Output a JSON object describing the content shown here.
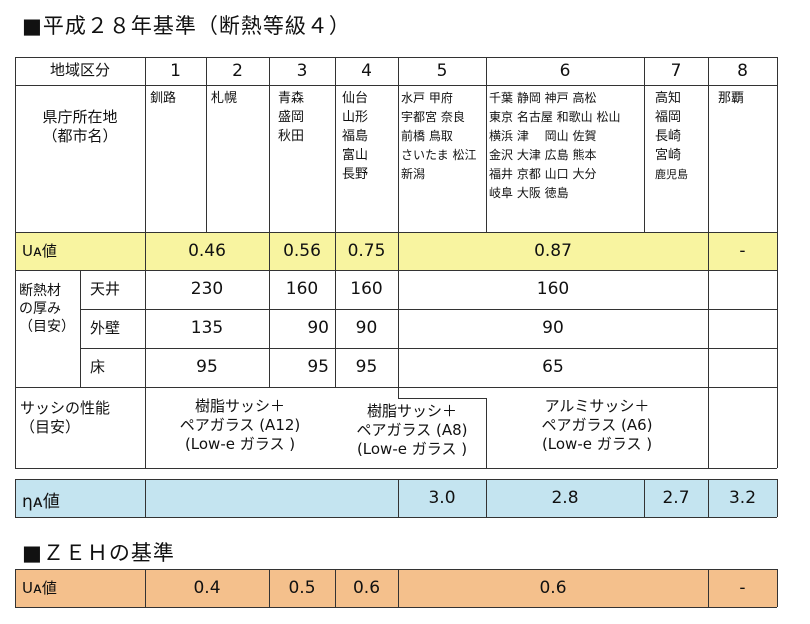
{
  "title": "■平成２８年基準（断熱等級４）",
  "zeh_title": "■ＺＥＨの基準",
  "colors": {
    "ua_row": "#f8f4a0",
    "eta_row": "#c4e4f0",
    "zeh_row": "#f4c08c",
    "border": "#333333"
  },
  "table": {
    "region_label": "地域区分",
    "regions": [
      "1",
      "2",
      "3",
      "4",
      "5",
      "6",
      "7",
      "8"
    ],
    "capital_label": [
      "県庁所在地",
      "（都市名）"
    ],
    "capitals": {
      "r1": [
        "釧路"
      ],
      "r2": [
        "札幌"
      ],
      "r3": [
        "青森",
        "盛岡",
        "秋田"
      ],
      "r4": [
        "仙台",
        "山形",
        "福島",
        "富山",
        "長野"
      ],
      "r5": [
        "水戸 甲府",
        "宇都宮 奈良",
        "前橋 鳥取",
        "さいたま 松江",
        "新潟"
      ],
      "r6": [
        "千葉 静岡 神戸 高松",
        "東京 名古屋 和歌山 松山",
        "横浜 津　 岡山 佐賀",
        "金沢 大津 広島 熊本",
        "福井 京都 山口 大分",
        "岐阜 大阪 徳島"
      ],
      "r7": [
        "高知",
        "福岡",
        "長崎",
        "宮崎",
        "鹿児島"
      ],
      "r8": [
        "那覇"
      ]
    },
    "ua_label": "Uᴀ値",
    "ua": {
      "r12": "0.46",
      "r3": "0.56",
      "r4": "0.75",
      "r567": "0.87",
      "r8": "-"
    },
    "insul_label": [
      "断熱材",
      "の厚み",
      "（目安）"
    ],
    "ceiling": {
      "label": "天井",
      "r12": "230",
      "r3": "160",
      "r4": "160",
      "r567": "160"
    },
    "wall": {
      "label": "外壁",
      "r12": "135",
      "r3": "90",
      "r4": "90",
      "r567": "90"
    },
    "floor": {
      "label": "床",
      "r12": "95",
      "r3": "95",
      "r4": "95",
      "r567": "65"
    },
    "sash_label": [
      "サッシの性能",
      "（目安）"
    ],
    "sash": {
      "a": [
        "樹脂サッシ＋",
        "ペアガラス (A12)",
        "(Low-e ガラス )"
      ],
      "b": [
        "樹脂サッシ＋",
        "ペアガラス (A8)",
        "(Low-e ガラス )"
      ],
      "c": [
        "アルミサッシ＋",
        "ペアガラス (A6)",
        "(Low-e ガラス )"
      ]
    },
    "eta_label": "ηᴀ値",
    "eta": {
      "r5": "3.0",
      "r6": "2.8",
      "r7": "2.7",
      "r8": "3.2"
    }
  },
  "zeh": {
    "ua_label": "Uᴀ値",
    "r12": "0.4",
    "r3": "0.5",
    "r4": "0.6",
    "r567": "0.6",
    "r8": "-"
  }
}
